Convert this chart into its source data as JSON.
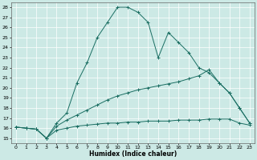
{
  "xlabel": "Humidex (Indice chaleur)",
  "x_ticks": [
    0,
    1,
    2,
    3,
    4,
    5,
    6,
    7,
    8,
    9,
    10,
    11,
    12,
    13,
    14,
    15,
    16,
    17,
    18,
    19,
    20,
    21,
    22,
    23
  ],
  "xlim": [
    -0.5,
    23.5
  ],
  "ylim": [
    14.5,
    28.5
  ],
  "y_ticks": [
    15,
    16,
    17,
    18,
    19,
    20,
    21,
    22,
    23,
    24,
    25,
    26,
    27,
    28
  ],
  "bg_color": "#cce9e5",
  "line_color": "#1a6e62",
  "line1_x": [
    0,
    1,
    2,
    3,
    4,
    5,
    6,
    7,
    8,
    9,
    10,
    11,
    12,
    13,
    14,
    15,
    16,
    17,
    18,
    19,
    20,
    21,
    22,
    23
  ],
  "line1_y": [
    16.1,
    16.0,
    15.9,
    15.0,
    15.8,
    16.0,
    16.2,
    16.3,
    16.4,
    16.5,
    16.5,
    16.6,
    16.6,
    16.7,
    16.7,
    16.7,
    16.8,
    16.8,
    16.8,
    16.9,
    16.9,
    16.9,
    16.5,
    16.3
  ],
  "line2_x": [
    0,
    1,
    2,
    3,
    4,
    5,
    6,
    7,
    8,
    9,
    10,
    11,
    12,
    13,
    14,
    15,
    16,
    17,
    18,
    19,
    20,
    21,
    22,
    23
  ],
  "line2_y": [
    16.1,
    16.0,
    15.9,
    15.0,
    16.5,
    17.5,
    20.5,
    22.5,
    25.0,
    26.5,
    28.0,
    28.0,
    27.5,
    26.5,
    23.0,
    25.5,
    24.5,
    23.5,
    22.0,
    21.5,
    20.5,
    19.5,
    18.0,
    16.5
  ],
  "line3_x": [
    0,
    1,
    2,
    3,
    4,
    5,
    6,
    7,
    8,
    9,
    10,
    11,
    12,
    13,
    14,
    15,
    16,
    17,
    18,
    19,
    20,
    21,
    22,
    23
  ],
  "line3_y": [
    16.1,
    16.0,
    15.9,
    15.0,
    16.2,
    16.8,
    17.3,
    17.8,
    18.3,
    18.8,
    19.2,
    19.5,
    19.8,
    20.0,
    20.2,
    20.4,
    20.6,
    20.9,
    21.2,
    21.8,
    20.5,
    19.5,
    18.0,
    16.5
  ]
}
